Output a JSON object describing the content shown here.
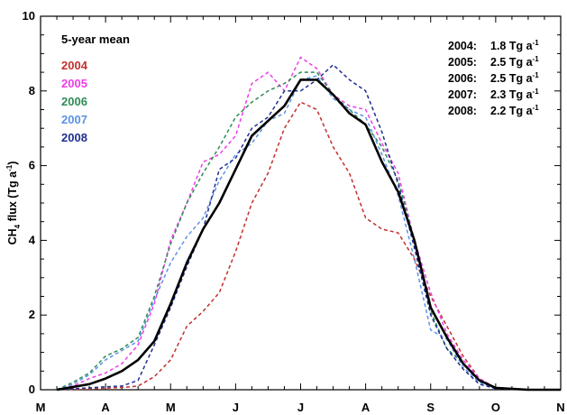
{
  "chart_data": {
    "type": "line",
    "title": "",
    "ylabel": {
      "main": "CH",
      "sub": "4",
      "mid": " flux (Tg a",
      "sup": "-1",
      "end": ")"
    },
    "xlabel": "",
    "xlim": [
      0,
      8
    ],
    "ylim": [
      0,
      10
    ],
    "y_ticks": [
      0,
      2,
      4,
      6,
      8,
      10
    ],
    "x_tick_labels": [
      "M",
      "A",
      "M",
      "J",
      "J",
      "A",
      "S",
      "O",
      "N"
    ],
    "legend_title": "5-year mean",
    "series": [
      {
        "name": "2004",
        "color": "#c0312e",
        "dash": true,
        "x": [
          0.25,
          0.75,
          1.0,
          1.25,
          1.5,
          1.75,
          2.0,
          2.25,
          2.5,
          2.75,
          3.0,
          3.25,
          3.5,
          3.75,
          4.0,
          4.25,
          4.5,
          4.75,
          5.0,
          5.25,
          5.5,
          5.75,
          6.0,
          6.25,
          6.5,
          6.75,
          7.0,
          7.25,
          7.5,
          8.0
        ],
        "y": [
          0,
          0.02,
          0.04,
          0.06,
          0.1,
          0.35,
          0.8,
          1.7,
          2.1,
          2.6,
          3.7,
          5.0,
          5.8,
          7.0,
          7.7,
          7.5,
          6.5,
          5.8,
          4.6,
          4.3,
          4.2,
          3.5,
          2.5,
          1.7,
          0.9,
          0.3,
          0.05,
          0.01,
          0,
          0
        ]
      },
      {
        "name": "2005",
        "color": "#ee3ee8",
        "dash": true,
        "x": [
          0.25,
          0.5,
          0.75,
          1.0,
          1.25,
          1.5,
          1.75,
          2.0,
          2.25,
          2.5,
          2.75,
          3.0,
          3.25,
          3.5,
          3.75,
          4.0,
          4.25,
          4.5,
          4.75,
          5.0,
          5.25,
          5.5,
          5.75,
          6.0,
          6.25,
          6.5,
          6.75,
          7.0,
          7.5,
          8.0
        ],
        "y": [
          0,
          0.1,
          0.3,
          0.45,
          0.7,
          1.2,
          2.3,
          4.0,
          5.0,
          6.1,
          6.3,
          6.8,
          8.2,
          8.5,
          8.0,
          8.9,
          8.6,
          7.9,
          7.6,
          7.5,
          6.6,
          5.8,
          4.0,
          2.6,
          1.5,
          0.8,
          0.3,
          0.05,
          0,
          0
        ]
      },
      {
        "name": "2006",
        "color": "#2e8b57",
        "dash": true,
        "x": [
          0.25,
          0.5,
          0.75,
          1.0,
          1.25,
          1.5,
          1.75,
          2.0,
          2.25,
          2.5,
          2.75,
          3.0,
          3.25,
          3.5,
          3.75,
          4.0,
          4.25,
          4.5,
          4.75,
          5.0,
          5.25,
          5.5,
          5.75,
          6.0,
          6.25,
          6.5,
          6.75,
          7.0,
          7.5,
          8.0
        ],
        "y": [
          0,
          0.2,
          0.45,
          0.9,
          1.1,
          1.4,
          2.5,
          3.9,
          5.0,
          5.8,
          6.5,
          7.3,
          7.7,
          8.0,
          8.2,
          8.5,
          8.5,
          7.9,
          7.5,
          7.1,
          6.5,
          5.6,
          4.0,
          2.1,
          1.1,
          0.7,
          0.25,
          0.05,
          0,
          0
        ]
      },
      {
        "name": "2007",
        "color": "#5b92e5",
        "dash": true,
        "x": [
          0.25,
          0.5,
          0.75,
          1.0,
          1.25,
          1.5,
          1.75,
          2.0,
          2.25,
          2.5,
          2.75,
          3.0,
          3.25,
          3.5,
          3.75,
          4.0,
          4.25,
          4.5,
          4.75,
          5.0,
          5.25,
          5.5,
          5.75,
          6.0,
          6.25,
          6.5,
          6.75,
          7.0,
          7.5,
          8.0
        ],
        "y": [
          0,
          0.15,
          0.4,
          0.8,
          1.05,
          1.3,
          2.4,
          3.4,
          4.1,
          4.6,
          5.6,
          6.3,
          6.6,
          7.2,
          7.4,
          8.3,
          8.4,
          7.8,
          7.5,
          7.3,
          6.3,
          5.2,
          3.5,
          1.6,
          1.35,
          0.6,
          0.2,
          0.03,
          0,
          0
        ]
      },
      {
        "name": "2008",
        "color": "#1f2f8f",
        "dash": true,
        "x": [
          0.25,
          0.75,
          1.0,
          1.25,
          1.5,
          1.75,
          2.0,
          2.25,
          2.5,
          2.75,
          3.0,
          3.25,
          3.5,
          3.75,
          4.0,
          4.25,
          4.5,
          4.75,
          5.0,
          5.25,
          5.5,
          5.75,
          6.0,
          6.25,
          6.5,
          6.75,
          7.0,
          7.5,
          8.0
        ],
        "y": [
          0,
          0.05,
          0.08,
          0.1,
          0.25,
          1.2,
          2.2,
          3.3,
          4.3,
          5.9,
          6.2,
          7.0,
          7.3,
          8.0,
          8.0,
          8.3,
          8.7,
          8.3,
          8.0,
          6.9,
          5.5,
          3.8,
          2.0,
          1.1,
          0.55,
          0.15,
          0.03,
          0,
          0
        ]
      },
      {
        "name": "5-year mean",
        "color": "#000000",
        "dash": false,
        "x": [
          0.25,
          0.75,
          1.0,
          1.25,
          1.5,
          1.75,
          2.0,
          2.25,
          2.5,
          2.75,
          3.0,
          3.25,
          3.5,
          3.75,
          4.0,
          4.25,
          4.5,
          4.75,
          5.0,
          5.25,
          5.5,
          5.75,
          6.0,
          6.25,
          6.5,
          6.75,
          7.0,
          7.5,
          8.0
        ],
        "y": [
          0,
          0.15,
          0.3,
          0.5,
          0.8,
          1.3,
          2.3,
          3.4,
          4.3,
          5.0,
          5.9,
          6.8,
          7.2,
          7.6,
          8.3,
          8.3,
          7.9,
          7.4,
          7.1,
          6.1,
          5.3,
          4.0,
          2.2,
          1.4,
          0.7,
          0.25,
          0.05,
          0,
          0
        ]
      }
    ],
    "annotations": [
      {
        "year": "2004:",
        "value": "1.8 Tg a",
        "sup": "-1"
      },
      {
        "year": "2005:",
        "value": "2.5 Tg a",
        "sup": "-1"
      },
      {
        "year": "2006:",
        "value": "2.5 Tg a",
        "sup": "-1"
      },
      {
        "year": "2007:",
        "value": "2.3 Tg a",
        "sup": "-1"
      },
      {
        "year": "2008:",
        "value": "2.2 Tg a",
        "sup": "-1"
      }
    ]
  }
}
